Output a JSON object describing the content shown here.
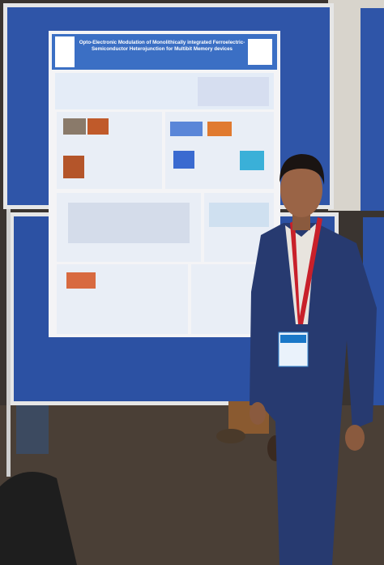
{
  "poster": {
    "title_lines": [
      "Opto-Electronic Modulation of Monolithically integrated Ferroelectric-",
      "Semiconductor Heterojunction for Multibit Memory devices"
    ]
  }
}
